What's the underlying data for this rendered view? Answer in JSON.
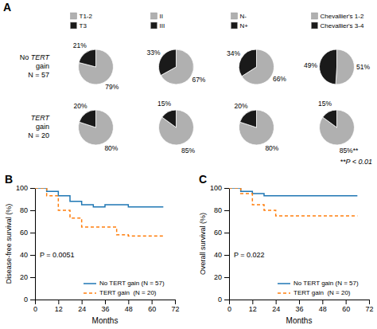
{
  "chart_data": [
    {
      "type": "pie",
      "title": "A",
      "categories": [
        "T1-2",
        "T3"
      ],
      "values": [
        79,
        21
      ],
      "value_labels": [
        "79%",
        "21%"
      ],
      "colors": [
        "#b0b0b0",
        "#1a1a1a"
      ],
      "data_labels": true,
      "legend": "top",
      "annotations": [
        "No TERT",
        "gain",
        "N = 57"
      ]
    },
    {
      "type": "pie",
      "categories": [
        "II",
        "III"
      ],
      "values": [
        67,
        33
      ],
      "value_labels": [
        "67%",
        "33%"
      ],
      "colors": [
        "#b0b0b0",
        "#1a1a1a"
      ],
      "data_labels": true,
      "legend": "top"
    },
    {
      "type": "pie",
      "categories": [
        "N-",
        "N+"
      ],
      "values": [
        66,
        34
      ],
      "value_labels": [
        "66%",
        "34%"
      ],
      "colors": [
        "#b0b0b0",
        "#1a1a1a"
      ],
      "data_labels": true,
      "legend": "top"
    },
    {
      "type": "pie",
      "categories": [
        "Chevallier's 1-2",
        "Chevallier's 3-4"
      ],
      "values": [
        51,
        49
      ],
      "value_labels": [
        "51%",
        "49%"
      ],
      "colors": [
        "#b0b0b0",
        "#1a1a1a"
      ],
      "data_labels": true,
      "legend": "top"
    },
    {
      "type": "pie",
      "values": [
        80,
        20
      ],
      "value_labels": [
        "80%",
        "20%"
      ],
      "colors": [
        "#b0b0b0",
        "#1a1a1a"
      ],
      "data_labels": true,
      "annotations": [
        "TERT",
        "gain",
        "N = 20"
      ]
    },
    {
      "type": "pie",
      "values": [
        85,
        15
      ],
      "value_labels": [
        "85%",
        "15%"
      ],
      "colors": [
        "#b0b0b0",
        "#1a1a1a"
      ],
      "data_labels": true
    },
    {
      "type": "pie",
      "values": [
        80,
        20
      ],
      "value_labels": [
        "80%",
        "20%"
      ],
      "colors": [
        "#b0b0b0",
        "#1a1a1a"
      ],
      "data_labels": true
    },
    {
      "type": "pie",
      "values": [
        85,
        15
      ],
      "value_labels": [
        "85%**",
        "15%"
      ],
      "colors": [
        "#b0b0b0",
        "#1a1a1a"
      ],
      "data_labels": true,
      "annotations": [
        "**P < 0.01"
      ]
    },
    {
      "type": "line",
      "title": "B",
      "xlabel": "Months",
      "ylabel": "Disease-free survival (%)",
      "xlim": [
        0,
        72
      ],
      "ylim": [
        0,
        100
      ],
      "xticks": [
        0,
        12,
        24,
        36,
        48,
        60,
        72
      ],
      "yticks": [
        0,
        20,
        40,
        60,
        80,
        100
      ],
      "legend": "lower right",
      "annotations": [
        "P = 0.0051"
      ],
      "series": [
        {
          "name": "No TERT gain (N = 57)",
          "line_style": "solid",
          "x": [
            0,
            6,
            6,
            12,
            12,
            18,
            18,
            24,
            24,
            30,
            30,
            36,
            36,
            42,
            48,
            48,
            54,
            60,
            60,
            66
          ],
          "values": [
            100,
            100,
            97,
            97,
            93,
            93,
            88,
            88,
            85,
            85,
            83,
            83,
            85,
            85,
            85,
            83,
            83,
            83,
            83,
            83
          ]
        },
        {
          "name": "TERT gain  (N = 20)",
          "line_style": "dashed",
          "x": [
            0,
            6,
            6,
            12,
            12,
            18,
            18,
            24,
            24,
            30,
            36,
            36,
            42,
            42,
            48,
            48,
            60,
            60,
            66
          ],
          "values": [
            100,
            100,
            93,
            93,
            80,
            80,
            73,
            73,
            65,
            65,
            65,
            65,
            58,
            58,
            58,
            57,
            57,
            57,
            57
          ]
        }
      ]
    },
    {
      "type": "line",
      "title": "C",
      "xlabel": "Months",
      "ylabel": "Overall survival (%)",
      "xlim": [
        0,
        72
      ],
      "ylim": [
        0,
        100
      ],
      "xticks": [
        0,
        12,
        24,
        36,
        48,
        60,
        72
      ],
      "yticks": [
        0,
        20,
        40,
        60,
        80,
        100
      ],
      "legend": "lower right",
      "annotations": [
        "P = 0.022"
      ],
      "series": [
        {
          "name": "No TERT gain (N = 57)",
          "line_style": "solid",
          "x": [
            0,
            6,
            6,
            12,
            12,
            18,
            18,
            24,
            24,
            30,
            36,
            36,
            42,
            48,
            60,
            60,
            66
          ],
          "values": [
            100,
            100,
            97,
            97,
            95,
            95,
            93,
            93,
            93,
            93,
            93,
            93,
            93,
            93,
            93,
            93,
            93
          ]
        },
        {
          "name": "TERT gain  (N = 20)",
          "line_style": "dashed",
          "x": [
            0,
            6,
            6,
            12,
            12,
            18,
            18,
            24,
            24,
            30,
            30,
            36,
            36,
            42,
            48,
            60,
            60,
            66
          ],
          "values": [
            100,
            100,
            95,
            95,
            85,
            85,
            80,
            80,
            75,
            75,
            75,
            75,
            75,
            75,
            75,
            75,
            75,
            75
          ]
        }
      ]
    }
  ]
}
